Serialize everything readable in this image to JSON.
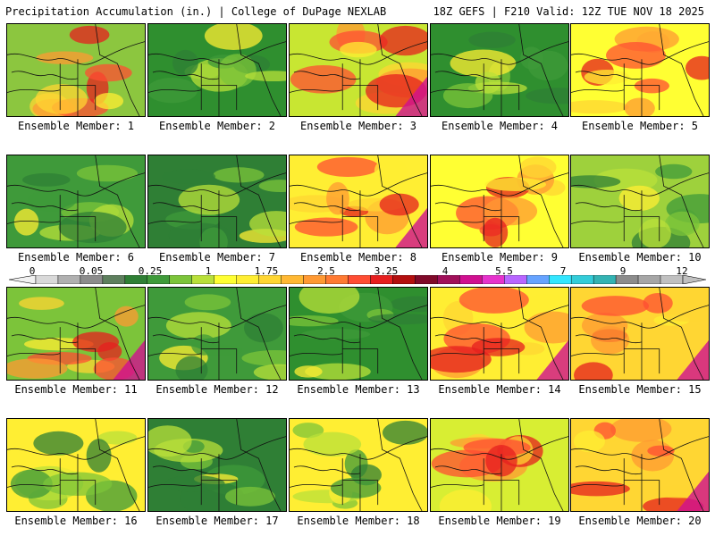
{
  "header": {
    "left_title": "Precipitation Accumulation (in.) | College of DuPage NEXLAB",
    "right_title": "18Z GEFS | F210 Valid: 12Z TUE NOV 18 2025"
  },
  "member_prefix": "Ensemble Member: ",
  "members": [
    {
      "label": "Ensemble Member: 1",
      "base": "#8cc63f",
      "wetness": 0.75
    },
    {
      "label": "Ensemble Member: 2",
      "base": "#2f8f2f",
      "wetness": 0.45
    },
    {
      "label": "Ensemble Member: 3",
      "base": "#c8e632",
      "wetness": 0.85
    },
    {
      "label": "Ensemble Member: 4",
      "base": "#2f8f2f",
      "wetness": 0.4
    },
    {
      "label": "Ensemble Member: 5",
      "base": "#ffff33",
      "wetness": 0.8
    },
    {
      "label": "Ensemble Member: 6",
      "base": "#3f9a3a",
      "wetness": 0.45
    },
    {
      "label": "Ensemble Member: 7",
      "base": "#2f7f35",
      "wetness": 0.3
    },
    {
      "label": "Ensemble Member: 8",
      "base": "#ffee33",
      "wetness": 0.85
    },
    {
      "label": "Ensemble Member: 9",
      "base": "#ffff33",
      "wetness": 0.8
    },
    {
      "label": "Ensemble Member: 10",
      "base": "#9ed13c",
      "wetness": 0.55
    },
    {
      "label": "Ensemble Member: 11",
      "base": "#7cc43a",
      "wetness": 0.95
    },
    {
      "label": "Ensemble Member: 12",
      "base": "#3f9a3a",
      "wetness": 0.45
    },
    {
      "label": "Ensemble Member: 13",
      "base": "#2f8f2f",
      "wetness": 0.5
    },
    {
      "label": "Ensemble Member: 14",
      "base": "#ffee33",
      "wetness": 0.85
    },
    {
      "label": "Ensemble Member: 15",
      "base": "#ffd633",
      "wetness": 0.85
    },
    {
      "label": "Ensemble Member: 16",
      "base": "#ffee33",
      "wetness": 0.7
    },
    {
      "label": "Ensemble Member: 17",
      "base": "#2f7f35",
      "wetness": 0.35
    },
    {
      "label": "Ensemble Member: 18",
      "base": "#ffee33",
      "wetness": 0.7
    },
    {
      "label": "Ensemble Member: 19",
      "base": "#d8ee33",
      "wetness": 0.75
    },
    {
      "label": "Ensemble Member: 20",
      "base": "#ffd633",
      "wetness": 0.85
    }
  ],
  "colorbar": {
    "ticks": [
      "0",
      "0.05",
      "0.25",
      "1",
      "1.75",
      "2.5",
      "3.25",
      "4",
      "5.5",
      "7",
      "9",
      "12"
    ],
    "colors": [
      "#d9d9d9",
      "#b0b0b0",
      "#8c8c8c",
      "#5e7f5e",
      "#2f7f35",
      "#3f9a3a",
      "#7cc43a",
      "#b9e03a",
      "#ffff33",
      "#ffee33",
      "#ffd633",
      "#ffb833",
      "#ff9933",
      "#ff7a33",
      "#ff4d33",
      "#e61f1f",
      "#b30f0f",
      "#800a2a",
      "#a0105a",
      "#d01090",
      "#e633cc",
      "#b866ff",
      "#66a3ff",
      "#33e6ff",
      "#33ccd9",
      "#33b3b3",
      "#8c8c8c",
      "#a6a6a6",
      "#c0c0c0"
    ]
  }
}
